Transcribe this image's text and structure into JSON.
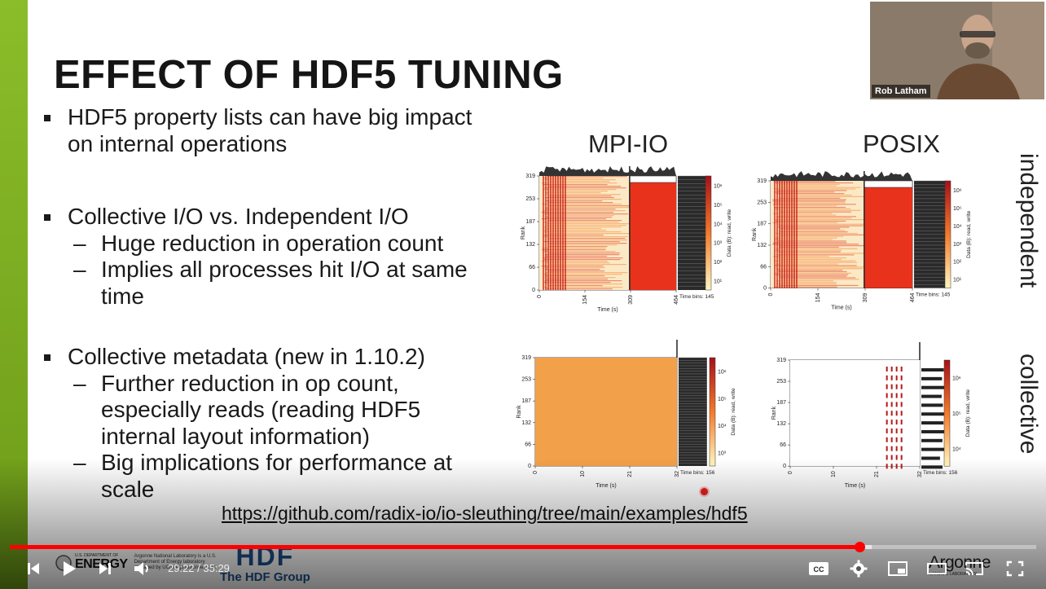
{
  "slide": {
    "title": "EFFECT OF HDF5 TUNING",
    "bullets": [
      {
        "text": "HDF5 property lists can have big impact on internal operations",
        "lines": [
          "HDF5 property lists can have big impact",
          "on internal operations"
        ],
        "subs": []
      },
      {
        "text": "Collective I/O vs. Independent I/O",
        "lines": [
          "Collective I/O vs. Independent I/O"
        ],
        "subs": [
          {
            "lines": [
              "Huge reduction in operation count"
            ]
          },
          {
            "lines": [
              "Implies all processes hit I/O at same",
              "time"
            ]
          }
        ]
      },
      {
        "text": "Collective metadata (new in 1.10.2)",
        "lines": [
          "Collective metadata (new in 1.10.2)"
        ],
        "subs": [
          {
            "lines": [
              "Further reduction in op count,",
              "especially reads (reading HDF5",
              "internal layout information)"
            ]
          },
          {
            "lines": [
              "Big implications for performance at",
              "scale"
            ]
          }
        ]
      }
    ],
    "dash": "–",
    "column_labels": {
      "mpiio": "MPI-IO",
      "posix": "POSIX"
    },
    "row_labels": {
      "independent": "independent",
      "collective": "collective"
    },
    "link": "https://github.com/radix-io/io-sleuthing/tree/main/examples/hdf5",
    "footer": {
      "doe_line1": "U.S. DEPARTMENT OF",
      "doe_line2": "ENERGY",
      "argonne_note": "Argonne National Laboratory is a U.S. Department of Energy laboratory managed by UChicago Argonne, LLC.",
      "hdf_group": "The HDF Group",
      "hdf_mark": "HDF",
      "argonne": "Argonne",
      "argonne_sub": "NATIONAL LABORATORY"
    }
  },
  "chart_data": [
    {
      "type": "heatmap",
      "panel": "MPI-IO independent",
      "ylabel": "Rank",
      "xlabel": "Time (s)",
      "yticks": [
        "0",
        "66",
        "132",
        "187",
        "253",
        "319"
      ],
      "xticks": [
        "0",
        "154",
        "309",
        "464"
      ],
      "colorbar_label": "Data (B): read, write",
      "colorbar_ticks": [
        "10¹",
        "10²",
        "10³",
        "10⁴",
        "10⁵",
        "10⁶"
      ],
      "time_bins": "Time bins: 145"
    },
    {
      "type": "heatmap",
      "panel": "POSIX independent",
      "ylabel": "Rank",
      "xlabel": "Time (s)",
      "yticks": [
        "0",
        "66",
        "132",
        "187",
        "253",
        "319"
      ],
      "xticks": [
        "0",
        "154",
        "309",
        "464"
      ],
      "colorbar_label": "Data (B): read, write",
      "colorbar_ticks": [
        "10¹",
        "10²",
        "10³",
        "10⁴",
        "10⁵",
        "10⁶"
      ],
      "time_bins": "Time bins: 145"
    },
    {
      "type": "heatmap",
      "panel": "MPI-IO collective",
      "ylabel": "Rank",
      "xlabel": "Time (s)",
      "yticks": [
        "0",
        "66",
        "132",
        "187",
        "253",
        "319"
      ],
      "xticks": [
        "0",
        "10",
        "21",
        "32"
      ],
      "colorbar_label": "Data (B): read, write",
      "colorbar_ticks": [
        "10³",
        "10⁴",
        "10⁵",
        "10⁶"
      ],
      "time_bins": "Time bins: 156"
    },
    {
      "type": "heatmap",
      "panel": "POSIX collective",
      "ylabel": "Rank",
      "xlabel": "Time (s)",
      "yticks": [
        "0",
        "66",
        "132",
        "187",
        "253",
        "319"
      ],
      "xticks": [
        "0",
        "10",
        "21",
        "32"
      ],
      "colorbar_label": "Data (B): read, write",
      "colorbar_ticks": [
        "10⁴",
        "10⁵",
        "10⁶"
      ],
      "time_bins": "Time bins: 156"
    }
  ],
  "webcam": {
    "name": "Rob Latham"
  },
  "player": {
    "current_time": "29:22",
    "duration": "35:29",
    "time_display": "29:22 / 35:29",
    "progress_fraction": 0.828,
    "buffered_fraction": 0.84,
    "icons": [
      "previous-icon",
      "play-icon",
      "next-icon",
      "volume-icon",
      "captions-icon",
      "settings-icon",
      "miniplayer-icon",
      "theater-icon",
      "cast-icon",
      "fullscreen-icon"
    ],
    "captions_label": "CC"
  }
}
